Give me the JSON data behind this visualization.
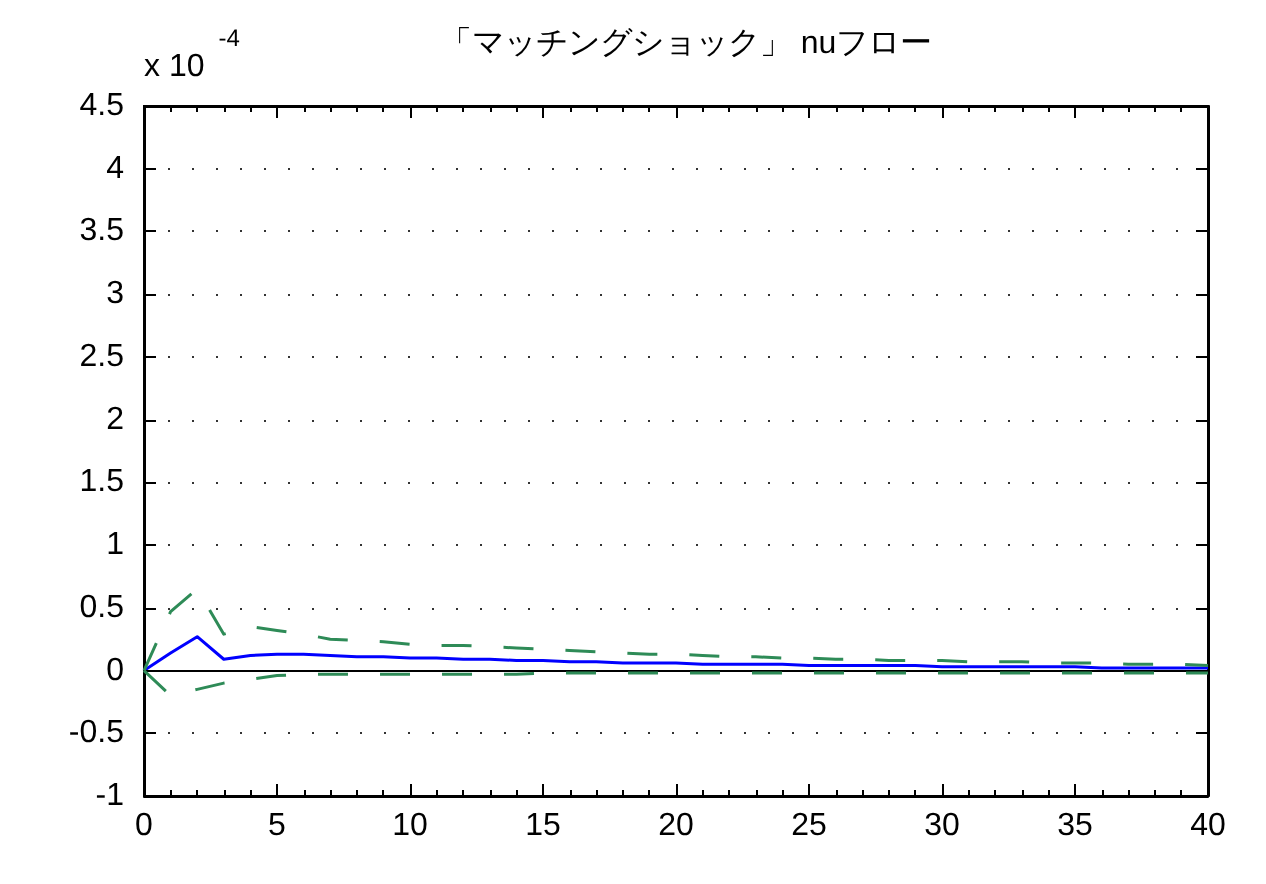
{
  "chart_data": {
    "type": "line",
    "title": "「マッチングショック」 nuフロー",
    "annotations": [
      "x 10$^{-4}$"
    ],
    "x": [
      0,
      1,
      2,
      3,
      4,
      5,
      6,
      7,
      8,
      9,
      10,
      11,
      12,
      13,
      14,
      15,
      16,
      17,
      18,
      19,
      20,
      21,
      22,
      23,
      24,
      25,
      26,
      27,
      28,
      29,
      30,
      31,
      32,
      33,
      34,
      35,
      36,
      37,
      38,
      39,
      40
    ],
    "series": [
      {
        "color": "#0000ff",
        "line_style": "solid",
        "values": [
          0,
          0.14,
          0.27,
          0.09,
          0.12,
          0.13,
          0.13,
          0.12,
          0.11,
          0.11,
          0.1,
          0.1,
          0.09,
          0.09,
          0.08,
          0.08,
          0.07,
          0.07,
          0.06,
          0.06,
          0.06,
          0.05,
          0.05,
          0.05,
          0.05,
          0.04,
          0.04,
          0.04,
          0.04,
          0.04,
          0.03,
          0.03,
          0.03,
          0.03,
          0.03,
          0.03,
          0.02,
          0.02,
          0.02,
          0.02,
          0.02
        ]
      },
      {
        "color": "#2e8b57",
        "line_style": "dashed",
        "values": [
          0,
          0.47,
          0.65,
          0.29,
          0.35,
          0.32,
          0.29,
          0.25,
          0.24,
          0.23,
          0.21,
          0.2,
          0.2,
          0.19,
          0.18,
          0.17,
          0.16,
          0.15,
          0.14,
          0.13,
          0.13,
          0.12,
          0.11,
          0.11,
          0.1,
          0.1,
          0.09,
          0.09,
          0.08,
          0.08,
          0.08,
          0.07,
          0.07,
          0.07,
          0.06,
          0.06,
          0.06,
          0.05,
          0.05,
          0.05,
          0.04
        ]
      },
      {
        "color": "#2e8b57",
        "line_style": "dashed",
        "values": [
          0,
          -0.2,
          -0.15,
          -0.1,
          -0.07,
          -0.04,
          -0.03,
          -0.03,
          -0.03,
          -0.03,
          -0.03,
          -0.03,
          -0.03,
          -0.03,
          -0.03,
          -0.02,
          -0.02,
          -0.02,
          -0.02,
          -0.02,
          -0.02,
          -0.02,
          -0.02,
          -0.02,
          -0.02,
          -0.02,
          -0.02,
          -0.02,
          -0.02,
          -0.02,
          -0.02,
          -0.02,
          -0.02,
          -0.02,
          -0.02,
          -0.02,
          -0.02,
          -0.02,
          -0.02,
          -0.02,
          -0.02
        ]
      }
    ],
    "xlim": [
      0,
      40
    ],
    "xticks": [
      0,
      5,
      10,
      15,
      20,
      25,
      30,
      35,
      40
    ],
    "ylim": [
      -1,
      4.5
    ],
    "yticks": [
      -1,
      -0.5,
      0,
      0.5,
      1,
      1.5,
      2,
      2.5,
      3,
      3.5,
      4,
      4.5
    ],
    "grid": "y",
    "marker": "none",
    "ref_lines": [
      {
        "axis": "y",
        "value": 0,
        "color": "#000000"
      }
    ]
  }
}
